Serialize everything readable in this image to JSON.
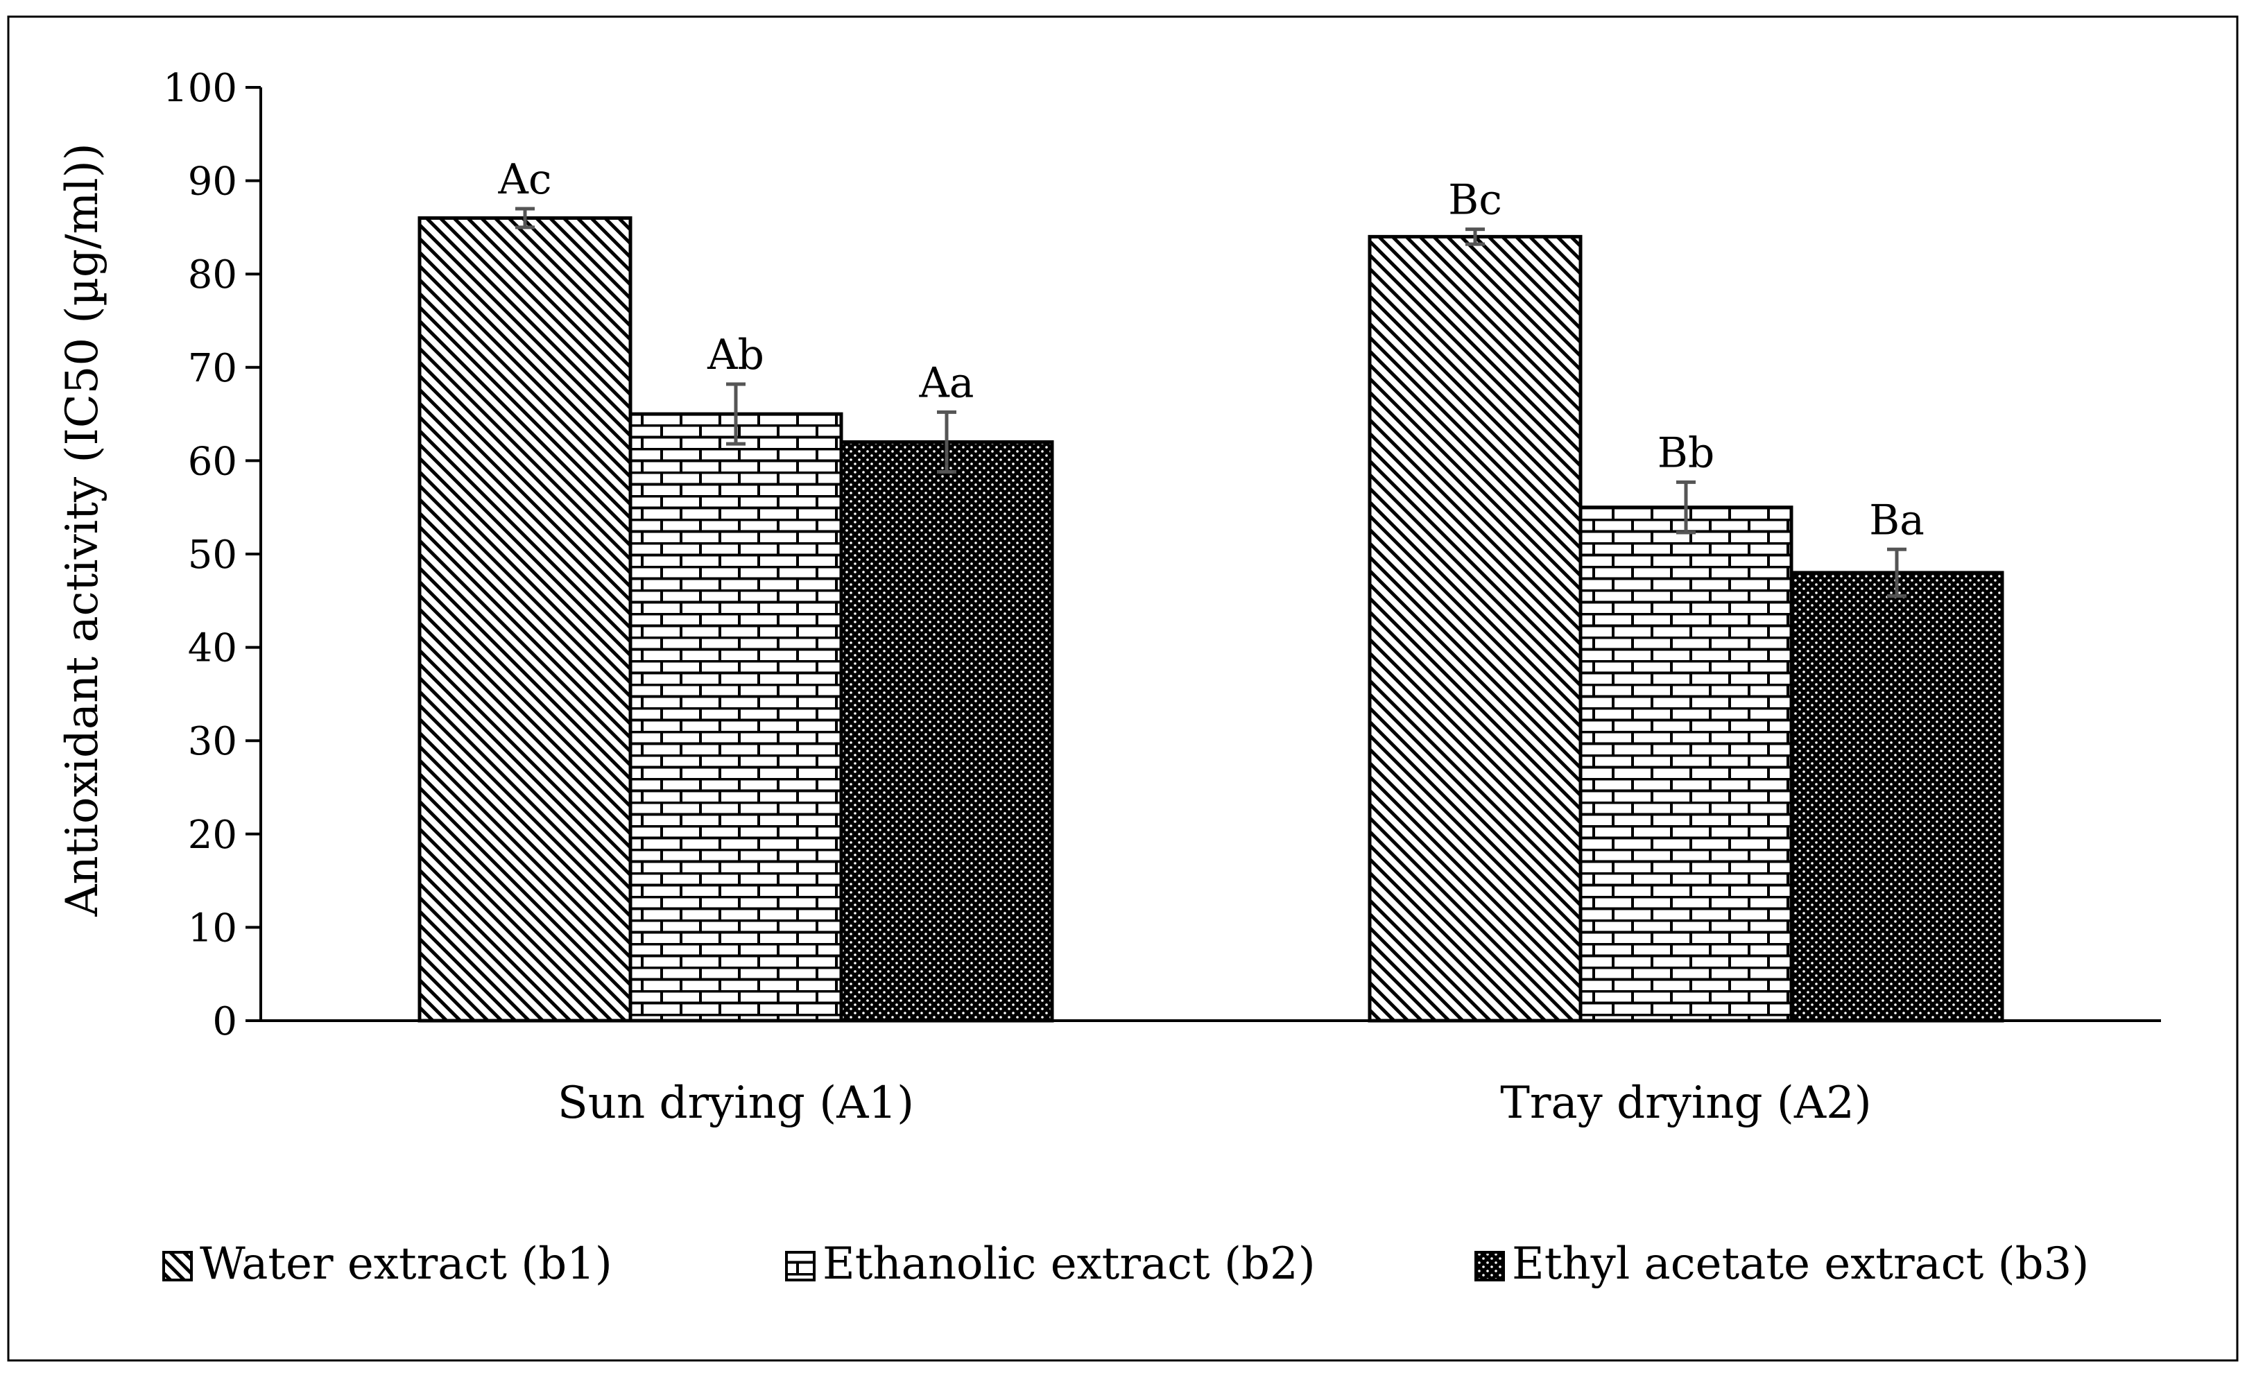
{
  "chart_data": {
    "type": "bar",
    "title": "",
    "xlabel": "",
    "ylabel": "Antioxidant activity (IC50 (µg/ml))",
    "ylim": [
      0,
      100
    ],
    "ytick_step": 10,
    "categories": [
      "Sun drying (A1)",
      "Tray drying (A2)"
    ],
    "series": [
      {
        "name": "Water extract (b1)",
        "pattern": "diagonal-hatch",
        "values": [
          86,
          84
        ],
        "errors": [
          1,
          0.8
        ],
        "labels": [
          "Ac",
          "Bc"
        ]
      },
      {
        "name": "Ethanolic extract (b2)",
        "pattern": "brick",
        "values": [
          65,
          55
        ],
        "errors": [
          3.2,
          2.7
        ],
        "labels": [
          "Ab",
          "Bb"
        ]
      },
      {
        "name": "Ethyl acetate extract (b3)",
        "pattern": "dotted-dark",
        "values": [
          62,
          48
        ],
        "errors": [
          3.2,
          2.5
        ],
        "labels": [
          "Aa",
          "Ba"
        ]
      }
    ],
    "legend_position": "bottom",
    "grid": false
  },
  "colors": {
    "axis": "#000000",
    "bar_outline": "#000000",
    "error_bar": "#555555",
    "background": "#ffffff"
  }
}
